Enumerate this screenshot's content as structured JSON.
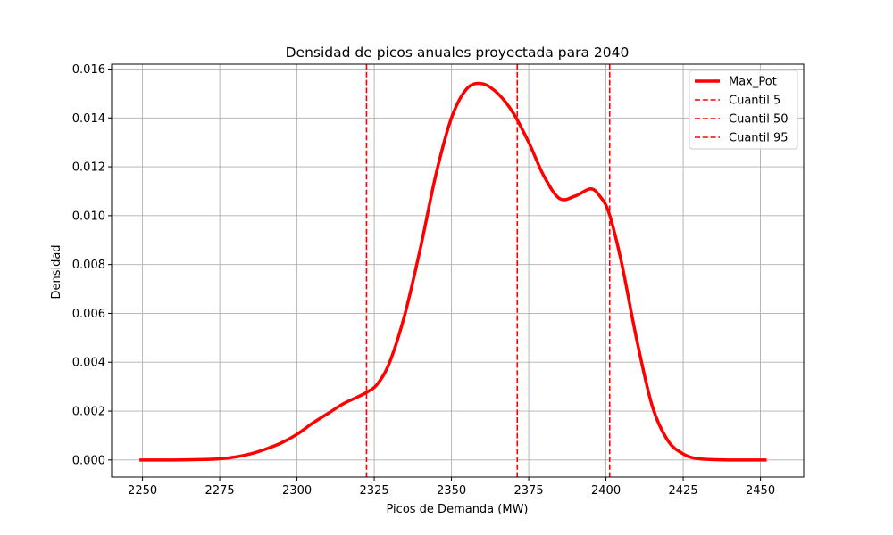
{
  "chart_data": {
    "type": "line",
    "title": "Densidad de picos anuales proyectada para 2040",
    "xlabel": "Picos de Demanda (MW)",
    "ylabel": "Densidad",
    "xlim": [
      2240,
      2464
    ],
    "ylim": [
      -0.0007,
      0.0162
    ],
    "xticks": [
      2250,
      2275,
      2300,
      2325,
      2350,
      2375,
      2400,
      2425,
      2450
    ],
    "yticks": [
      0.0,
      0.002,
      0.004,
      0.006,
      0.008,
      0.01,
      0.012,
      0.014,
      0.016
    ],
    "ytick_labels": [
      "0.000",
      "0.002",
      "0.004",
      "0.006",
      "0.008",
      "0.010",
      "0.012",
      "0.014",
      "0.016"
    ],
    "grid": true,
    "legend_position": "top-right",
    "series": [
      {
        "name": "Max_Pot",
        "color": "#ff0000",
        "x": [
          2249,
          2260,
          2270,
          2275,
          2280,
          2285,
          2290,
          2295,
          2300,
          2305,
          2310,
          2315,
          2320,
          2323,
          2326,
          2330,
          2335,
          2340,
          2345,
          2350,
          2355,
          2360,
          2365,
          2370,
          2375,
          2380,
          2385,
          2390,
          2395,
          2398,
          2401,
          2405,
          2410,
          2415,
          2420,
          2425,
          2430,
          2440,
          2452
        ],
        "y": [
          0.0,
          0.0,
          2e-05,
          5e-05,
          0.00012,
          0.00025,
          0.00045,
          0.0007,
          0.00105,
          0.0015,
          0.0019,
          0.0023,
          0.0026,
          0.0028,
          0.0031,
          0.004,
          0.006,
          0.0087,
          0.0117,
          0.014,
          0.0152,
          0.0154,
          0.015,
          0.0142,
          0.013,
          0.0116,
          0.0107,
          0.0108,
          0.0111,
          0.0108,
          0.0101,
          0.0081,
          0.0049,
          0.0022,
          0.0008,
          0.00025,
          5e-05,
          0.0,
          0.0
        ]
      }
    ],
    "vlines": [
      {
        "name": "Cuantil 5",
        "x": 2322.5,
        "color": "#ff0000"
      },
      {
        "name": "Cuantil 50",
        "x": 2371.3,
        "color": "#ff0000"
      },
      {
        "name": "Cuantil 95",
        "x": 2401.2,
        "color": "#ff0000"
      }
    ]
  }
}
